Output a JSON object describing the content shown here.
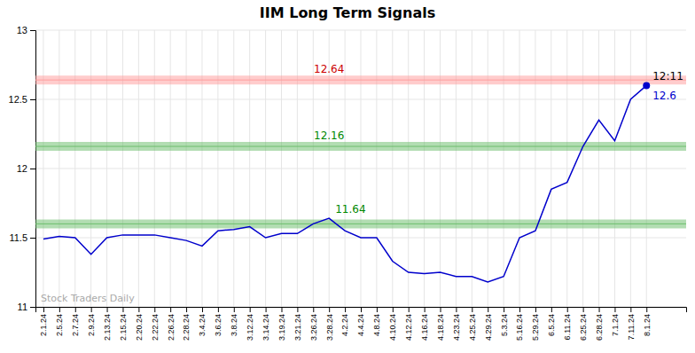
{
  "chart_data": {
    "type": "line",
    "title": "IIM Long Term Signals",
    "categories": [
      "2.1.24",
      "2.5.24",
      "2.7.24",
      "2.9.24",
      "2.13.24",
      "2.15.24",
      "2.20.24",
      "2.22.24",
      "2.26.24",
      "2.28.24",
      "3.4.24",
      "3.6.24",
      "3.8.24",
      "3.12.24",
      "3.14.24",
      "3.19.24",
      "3.21.24",
      "3.26.24",
      "3.28.24",
      "4.2.24",
      "4.4.24",
      "4.8.24",
      "4.10.24",
      "4.12.24",
      "4.16.24",
      "4.18.24",
      "4.23.24",
      "4.25.24",
      "4.29.24",
      "5.3.24",
      "5.16.24",
      "5.29.24",
      "6.5.24",
      "6.11.24",
      "6.25.24",
      "6.28.24",
      "7.1.24",
      "7.11.24",
      "8.1.24"
    ],
    "values": [
      11.49,
      11.51,
      11.5,
      11.38,
      11.5,
      11.52,
      11.52,
      11.52,
      11.5,
      11.48,
      11.44,
      11.55,
      11.56,
      11.58,
      11.5,
      11.53,
      11.53,
      11.6,
      11.64,
      11.55,
      11.5,
      11.5,
      11.33,
      11.25,
      11.24,
      11.25,
      11.22,
      11.22,
      11.18,
      11.22,
      11.5,
      11.55,
      11.85,
      11.9,
      12.16,
      12.35,
      12.2,
      12.5,
      12.6
    ],
    "color": "#0000cc",
    "ylim": [
      11.0,
      13.0
    ],
    "yticks": [
      11,
      11.5,
      12,
      12.5,
      13
    ],
    "grid": true,
    "hlines": [
      {
        "value": 12.64,
        "color": "#ff9999"
      },
      {
        "value": 12.16,
        "color": "#66bb66"
      },
      {
        "value": 11.6,
        "color": "#66bb66"
      }
    ],
    "annotations": [
      {
        "text": "12.64",
        "x": "3.28.24",
        "y": 12.64,
        "color": "#cc0000"
      },
      {
        "text": "12.16",
        "x": "3.28.24",
        "y": 12.16,
        "color": "#008800"
      },
      {
        "text": "11.64",
        "x": "3.28.24",
        "y": 11.64,
        "color": "#008800"
      },
      {
        "text": "12:11",
        "x": "8.1.24",
        "y": 12.6,
        "color": "#000000"
      },
      {
        "text": "12.6",
        "x": "8.1.24",
        "y": 12.6,
        "color": "#0000cc"
      },
      {
        "text": "Stock Traders Daily",
        "color": "#aaaaaa"
      }
    ]
  }
}
